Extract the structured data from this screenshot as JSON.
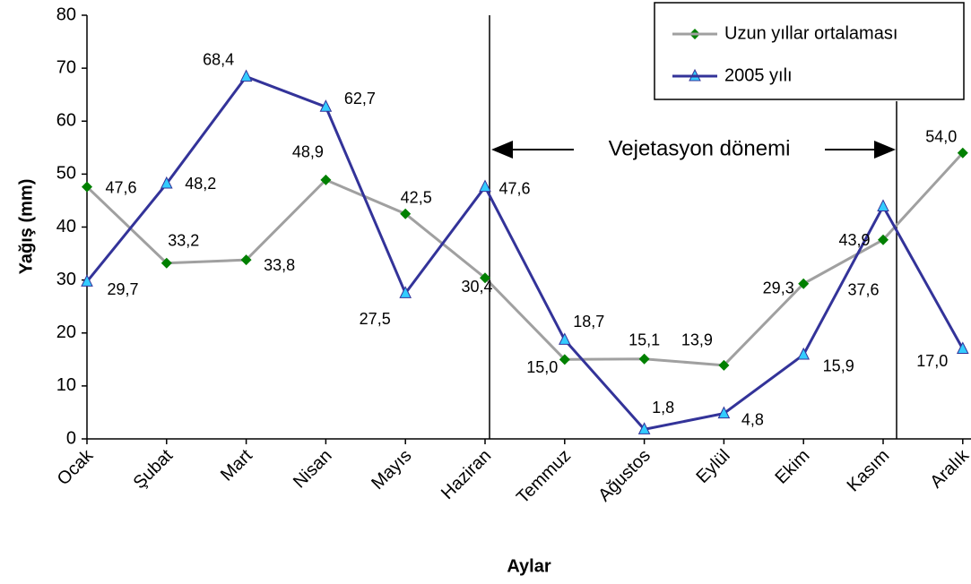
{
  "chart_data": {
    "type": "line",
    "y_label": "Yağış (mm)",
    "x_label": "Aylar",
    "annotation": "Vejetasyon dönemi",
    "categories": [
      "Ocak",
      "Şubat",
      "Mart",
      "Nisan",
      "Mayıs",
      "Haziran",
      "Temmuz",
      "Ağustos",
      "Eylül",
      "Ekim",
      "Kasım",
      "Aralık"
    ],
    "series": [
      {
        "name": "Uzun yıllar ortalaması",
        "color": "#a0a0a0",
        "marker_color": "#008000",
        "marker": "diamond",
        "values": [
          47.6,
          33.2,
          33.8,
          48.9,
          42.5,
          30.4,
          15.0,
          15.1,
          13.9,
          29.3,
          37.6,
          54.0
        ],
        "value_labels": [
          "47,6",
          "33,2",
          "33,8",
          "48,9",
          "42,5",
          "30,4",
          "15,0",
          "15,1",
          "13,9",
          "29,3",
          "37,6",
          "54,0"
        ]
      },
      {
        "name": "2005 yılı",
        "color": "#333399",
        "marker_color": "#33ccff",
        "marker": "triangle",
        "values": [
          29.7,
          48.2,
          68.4,
          62.7,
          27.5,
          47.6,
          18.7,
          1.8,
          4.8,
          15.9,
          43.9,
          17.0
        ],
        "value_labels": [
          "29,7",
          "48,2",
          "68,4",
          "62,7",
          "27,5",
          "47,6",
          "18,7",
          "1,8",
          "4,8",
          "15,9",
          "43,9",
          "17,0"
        ]
      }
    ],
    "ylim": [
      0,
      80
    ],
    "yticks": [
      0,
      10,
      20,
      30,
      40,
      50,
      60,
      70,
      80
    ],
    "grid": false,
    "legend": "top-right"
  }
}
